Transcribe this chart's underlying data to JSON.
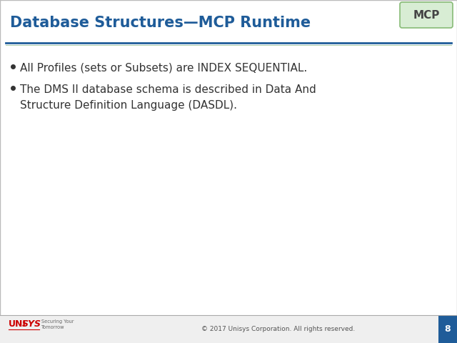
{
  "title": "Database Structures—MCP Runtime",
  "title_color": "#1F5C99",
  "title_fontsize": 15,
  "mcp_label": "MCP",
  "mcp_box_color": "#D8EDD4",
  "mcp_border_color": "#88BB77",
  "bullet_points": [
    "All Profiles (sets or Subsets) are INDEX SEQUENTIAL.",
    "The DMS II database schema is described in Data And\nStructure Definition Language (DASDL)."
  ],
  "bullet_fontsize": 11,
  "bullet_color": "#333333",
  "header_line_color": "#1F5C99",
  "footer_text": "© 2017 Unisys Corporation. All rights reserved.",
  "footer_page_num": "8",
  "footer_page_bg": "#1F5C99",
  "footer_page_color": "#FFFFFF",
  "unisys_red": "#CC0000",
  "background_color": "#FFFFFF",
  "slide_border_color": "#BBBBBB",
  "footer_sep_color": "#AAAAAA",
  "footer_bg": "#EFEFEF"
}
